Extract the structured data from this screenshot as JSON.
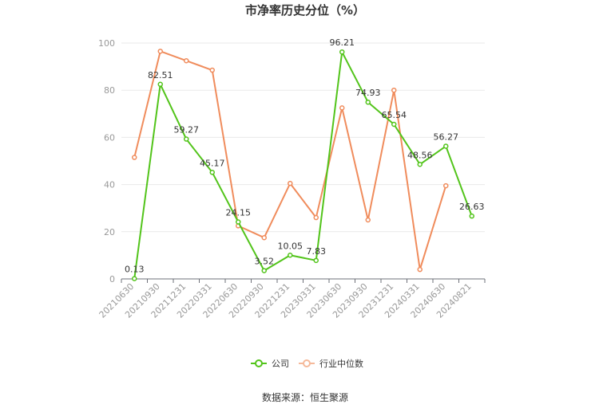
{
  "chart_data": {
    "type": "line",
    "title": "市净率历史分位（%）",
    "source": "数据来源：恒生聚源",
    "ylim": [
      0,
      100
    ],
    "yticks": [
      0,
      20,
      40,
      60,
      80,
      100
    ],
    "grid": true,
    "legend_position": "bottom",
    "categories": [
      "20210630",
      "20210930",
      "20211231",
      "20220331",
      "20220630",
      "20220930",
      "20221231",
      "20230331",
      "20230630",
      "20230930",
      "20231231",
      "20240331",
      "20240630",
      "20240821"
    ],
    "series": [
      {
        "name": "公司",
        "color": "#52c41a",
        "values": [
          0.13,
          82.51,
          59.27,
          45.17,
          24.15,
          3.52,
          10.05,
          7.83,
          96.21,
          74.93,
          65.54,
          48.56,
          56.27,
          26.63
        ],
        "labels": [
          "0.13",
          "82.51",
          "59.27",
          "45.17",
          "24.15",
          "3.52",
          "10.05",
          "7.83",
          "96.21",
          "74.93",
          "65.54",
          "48.56",
          "56.27",
          "26.63"
        ]
      },
      {
        "name": "行业中位数",
        "color": "#f08c5c",
        "values": [
          51.5,
          96.5,
          92.5,
          88.5,
          22.5,
          17.5,
          40.5,
          26.0,
          72.5,
          25.0,
          80.0,
          4.0,
          39.5,
          null
        ]
      }
    ]
  }
}
